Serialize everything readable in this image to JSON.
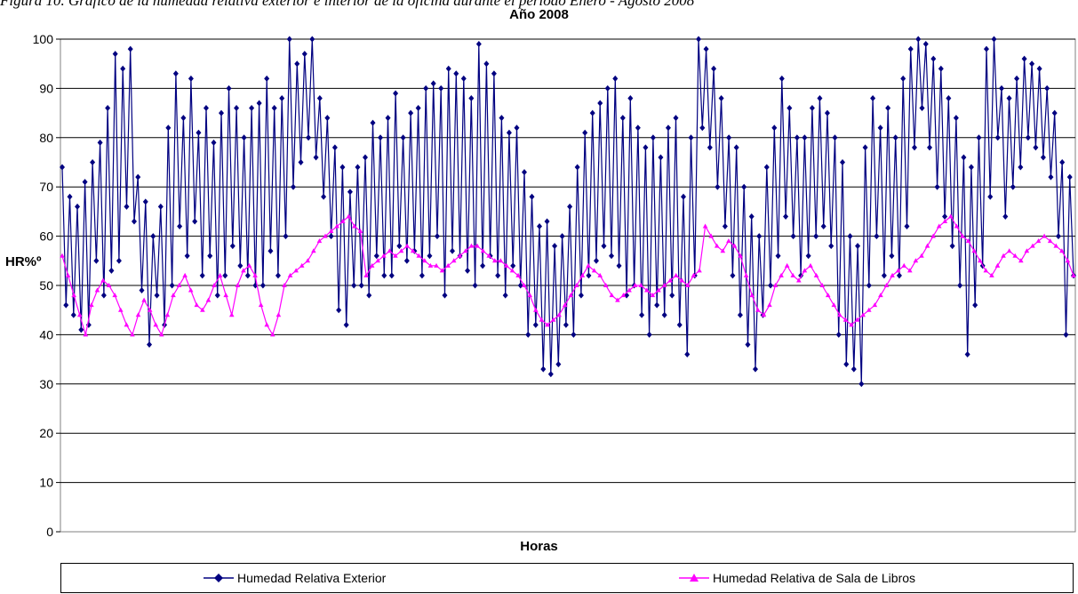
{
  "caption": "Figura 10. Gráfico de la humedad relativa exterior e interior de la oficina durante el período Enero - Agosto 2008",
  "chart_data": {
    "type": "line",
    "title": "Año 2008",
    "xlabel": "Horas",
    "ylabel": "HR%º",
    "ylim": [
      0,
      100
    ],
    "yticks": [
      0,
      10,
      20,
      30,
      40,
      50,
      60,
      70,
      80,
      90,
      100
    ],
    "grid": true,
    "legend_position": "bottom",
    "series": [
      {
        "name": "Humedad Relativa Exterior",
        "color": "#000080",
        "marker": "diamond",
        "values": [
          74,
          46,
          68,
          44,
          66,
          41,
          71,
          42,
          75,
          55,
          79,
          48,
          86,
          53,
          97,
          55,
          94,
          66,
          98,
          63,
          72,
          49,
          67,
          38,
          60,
          48,
          66,
          42,
          82,
          50,
          93,
          62,
          84,
          56,
          92,
          63,
          81,
          52,
          86,
          56,
          79,
          48,
          85,
          52,
          90,
          58,
          86,
          54,
          80,
          52,
          86,
          50,
          87,
          50,
          92,
          57,
          86,
          52,
          88,
          60,
          100,
          70,
          95,
          75,
          97,
          80,
          100,
          76,
          88,
          68,
          84,
          60,
          78,
          45,
          74,
          42,
          69,
          50,
          74,
          50,
          76,
          48,
          83,
          56,
          80,
          52,
          84,
          52,
          89,
          58,
          80,
          55,
          85,
          57,
          86,
          52,
          90,
          56,
          91,
          60,
          90,
          48,
          94,
          57,
          93,
          56,
          92,
          53,
          88,
          50,
          99,
          54,
          95,
          56,
          93,
          52,
          84,
          48,
          81,
          54,
          82,
          50,
          73,
          40,
          68,
          42,
          62,
          33,
          63,
          32,
          58,
          34,
          60,
          42,
          66,
          40,
          74,
          48,
          81,
          52,
          85,
          55,
          87,
          58,
          90,
          56,
          92,
          54,
          84,
          48,
          88,
          50,
          82,
          44,
          78,
          40,
          80,
          46,
          76,
          44,
          82,
          48,
          84,
          42,
          68,
          36,
          80,
          52,
          100,
          82,
          98,
          78,
          94,
          70,
          88,
          62,
          80,
          52,
          78,
          44,
          70,
          38,
          64,
          33,
          60,
          44,
          74,
          50,
          82,
          56,
          92,
          64,
          86,
          60,
          80,
          52,
          80,
          56,
          86,
          60,
          88,
          62,
          85,
          58,
          80,
          40,
          75,
          34,
          60,
          33,
          58,
          30,
          78,
          50,
          88,
          60,
          82,
          52,
          86,
          56,
          80,
          52,
          92,
          62,
          98,
          78,
          100,
          86,
          99,
          78,
          96,
          70,
          94,
          64,
          88,
          58,
          84,
          50,
          76,
          36,
          74,
          46,
          80,
          54,
          98,
          68,
          100,
          80,
          90,
          64,
          88,
          70,
          92,
          74,
          96,
          80,
          95,
          78,
          94,
          76,
          90,
          72,
          85,
          60,
          75,
          40,
          72,
          52
        ]
      },
      {
        "name": "Humedad Relativa de Sala de Libros",
        "color": "#ff00ff",
        "marker": "triangle",
        "values": [
          56,
          52,
          48,
          44,
          40,
          46,
          49,
          51,
          50,
          48,
          45,
          42,
          40,
          44,
          47,
          45,
          42,
          40,
          44,
          48,
          50,
          52,
          49,
          46,
          45,
          47,
          50,
          52,
          48,
          44,
          50,
          53,
          54,
          52,
          46,
          42,
          40,
          44,
          50,
          52,
          53,
          54,
          55,
          57,
          59,
          60,
          61,
          62,
          63,
          64,
          62,
          61,
          52,
          54,
          55,
          56,
          57,
          56,
          57,
          58,
          57,
          56,
          55,
          54,
          54,
          53,
          54,
          55,
          56,
          57,
          58,
          58,
          57,
          56,
          55,
          55,
          54,
          53,
          52,
          50,
          48,
          45,
          43,
          42,
          43,
          44,
          46,
          48,
          50,
          52,
          54,
          53,
          52,
          50,
          48,
          47,
          48,
          49,
          50,
          50,
          49,
          48,
          49,
          50,
          51,
          52,
          51,
          50,
          52,
          53,
          62,
          60,
          58,
          57,
          59,
          58,
          56,
          52,
          48,
          45,
          44,
          46,
          50,
          52,
          54,
          52,
          51,
          53,
          54,
          52,
          50,
          48,
          46,
          44,
          43,
          42,
          43,
          44,
          45,
          46,
          48,
          50,
          52,
          53,
          54,
          53,
          55,
          56,
          58,
          60,
          62,
          63,
          64,
          62,
          60,
          59,
          57,
          55,
          53,
          52,
          54,
          56,
          57,
          56,
          55,
          57,
          58,
          59,
          60,
          59,
          58,
          57,
          55,
          52
        ]
      }
    ]
  }
}
